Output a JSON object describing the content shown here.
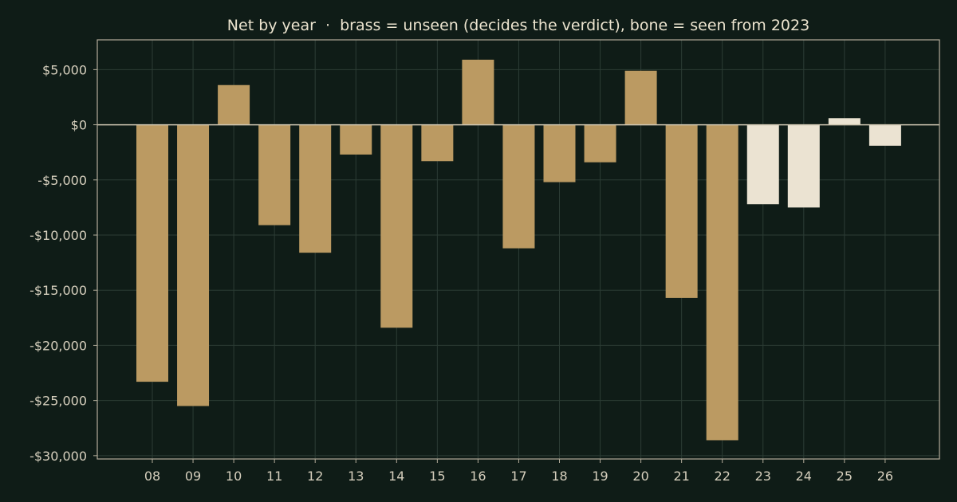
{
  "chart_data": {
    "type": "bar",
    "title": "Net by year  ·  brass = unseen (decides the verdict), bone = seen from 2023",
    "xlabel": "",
    "ylabel": "",
    "categories": [
      "08",
      "09",
      "10",
      "11",
      "12",
      "13",
      "14",
      "15",
      "16",
      "17",
      "18",
      "19",
      "20",
      "21",
      "22",
      "23",
      "24",
      "25",
      "26"
    ],
    "values": [
      -23300,
      -25500,
      3600,
      -9100,
      -11600,
      -2700,
      -18400,
      -3300,
      5900,
      -11200,
      -5200,
      -3400,
      4900,
      -15700,
      -28600,
      -7200,
      -7500,
      600,
      -1900
    ],
    "groups": [
      "unseen",
      "unseen",
      "unseen",
      "unseen",
      "unseen",
      "unseen",
      "unseen",
      "unseen",
      "unseen",
      "unseen",
      "unseen",
      "unseen",
      "unseen",
      "unseen",
      "unseen",
      "seen",
      "seen",
      "seen",
      "seen"
    ],
    "ylim": [
      -30300,
      7700
    ],
    "yticks": [
      5000,
      0,
      -5000,
      -10000,
      -15000,
      -20000,
      -25000,
      -30000
    ],
    "ytick_labels": [
      "$5,000",
      "$0",
      "-$5,000",
      "-$10,000",
      "-$15,000",
      "-$20,000",
      "-$25,000",
      "-$30,000"
    ],
    "grid": true,
    "legend": "none",
    "colors": {
      "background": "#0f1c17",
      "unseen": "#bb9a62",
      "seen": "#ebe3d2",
      "axis": "#b3ac9a",
      "grid": "#2c3c35",
      "zero_line": "#cfc6b1",
      "text": "#d6cfbd",
      "title": "#ece4cf"
    }
  }
}
